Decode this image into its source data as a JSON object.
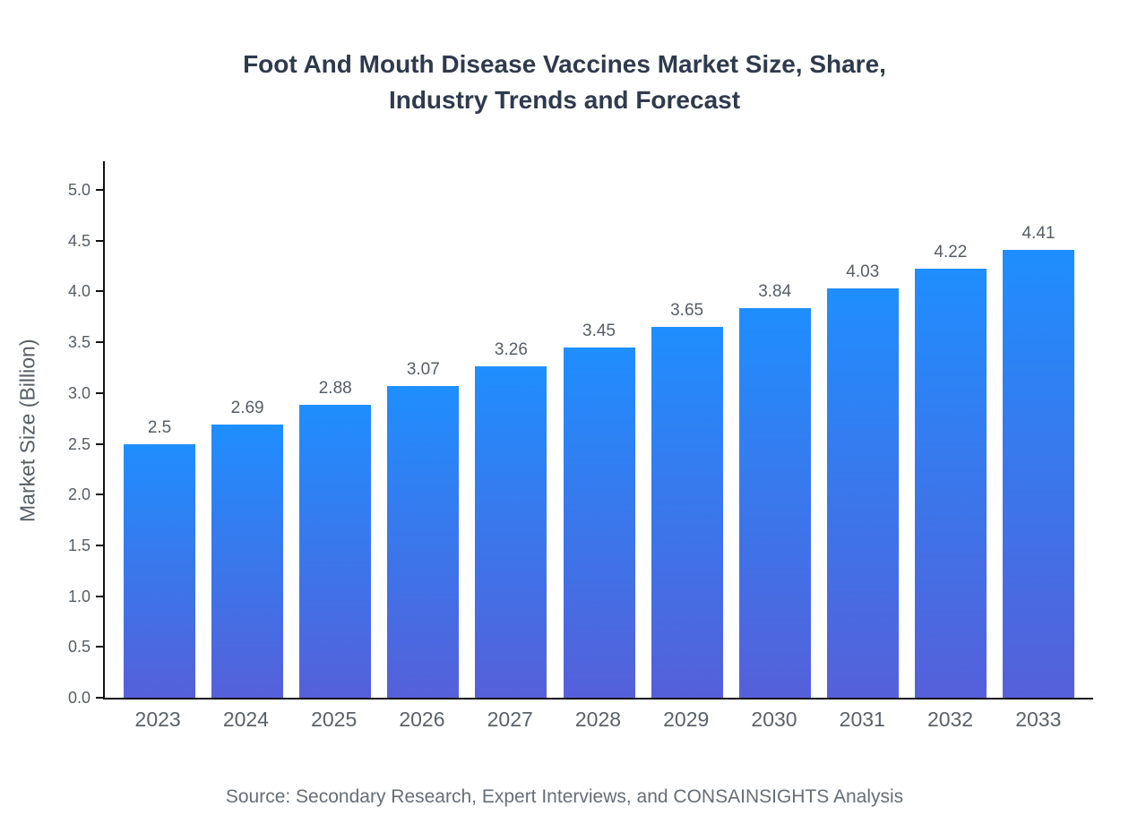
{
  "header": {
    "title_line1": "Foot And Mouth Disease Vaccines Market Size, Share,",
    "title_line2": "Industry Trends and Forecast"
  },
  "chart_data": {
    "type": "bar",
    "title": "Foot And Mouth Disease Vaccines Market Size, Share, Industry Trends and Forecast",
    "categories": [
      "2023",
      "2024",
      "2025",
      "2026",
      "2027",
      "2028",
      "2029",
      "2030",
      "2031",
      "2032",
      "2033"
    ],
    "values": [
      2.5,
      2.69,
      2.88,
      3.07,
      3.26,
      3.45,
      3.65,
      3.84,
      4.03,
      4.22,
      4.41
    ],
    "value_labels": [
      "2.5",
      "2.69",
      "2.88",
      "3.07",
      "3.26",
      "3.45",
      "3.65",
      "3.84",
      "4.03",
      "4.22",
      "4.41"
    ],
    "xlabel": "",
    "ylabel": "Market Size (Billion)",
    "ylim": [
      0,
      5.3
    ],
    "yticks": [
      0,
      0.5,
      1,
      1.5,
      2,
      2.5,
      3,
      3.5,
      4,
      4.5,
      5
    ],
    "grid": false,
    "legend": "none",
    "bar_gradient_top": "#1f8efe",
    "bar_gradient_bottom": "#5560d9",
    "source": "Source: Secondary Research, Expert Interviews, and CONSAINSIGHTS Analysis"
  },
  "colors": {
    "title": "#2e3a4e",
    "axis": "#111111",
    "tick_label": "#555d66",
    "value_label": "#555d66",
    "source_text": "#666e78"
  }
}
